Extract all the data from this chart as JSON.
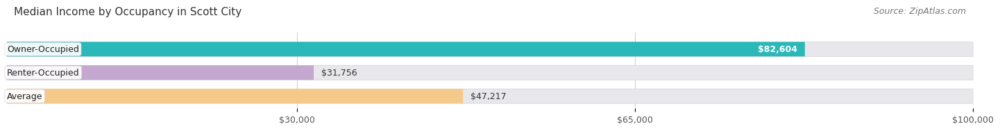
{
  "title": "Median Income by Occupancy in Scott City",
  "source": "Source: ZipAtlas.com",
  "categories": [
    "Owner-Occupied",
    "Renter-Occupied",
    "Average"
  ],
  "values": [
    82604,
    31756,
    47217
  ],
  "labels": [
    "$82,604",
    "$31,756",
    "$47,217"
  ],
  "bar_colors": [
    "#2ab8b8",
    "#c4a8d0",
    "#f5c98a"
  ],
  "bar_bg_color": "#e8e8ec",
  "bar_border_color": "#d0d0d8",
  "xmax": 100000,
  "xticks": [
    30000,
    65000,
    100000
  ],
  "xticklabels": [
    "$30,000",
    "$65,000",
    "$100,000"
  ],
  "title_fontsize": 11,
  "source_fontsize": 9,
  "label_fontsize": 9,
  "cat_fontsize": 9,
  "bar_height": 0.62,
  "background_color": "#ffffff",
  "label_inside_color": "#ffffff",
  "label_outside_color": "#333333"
}
